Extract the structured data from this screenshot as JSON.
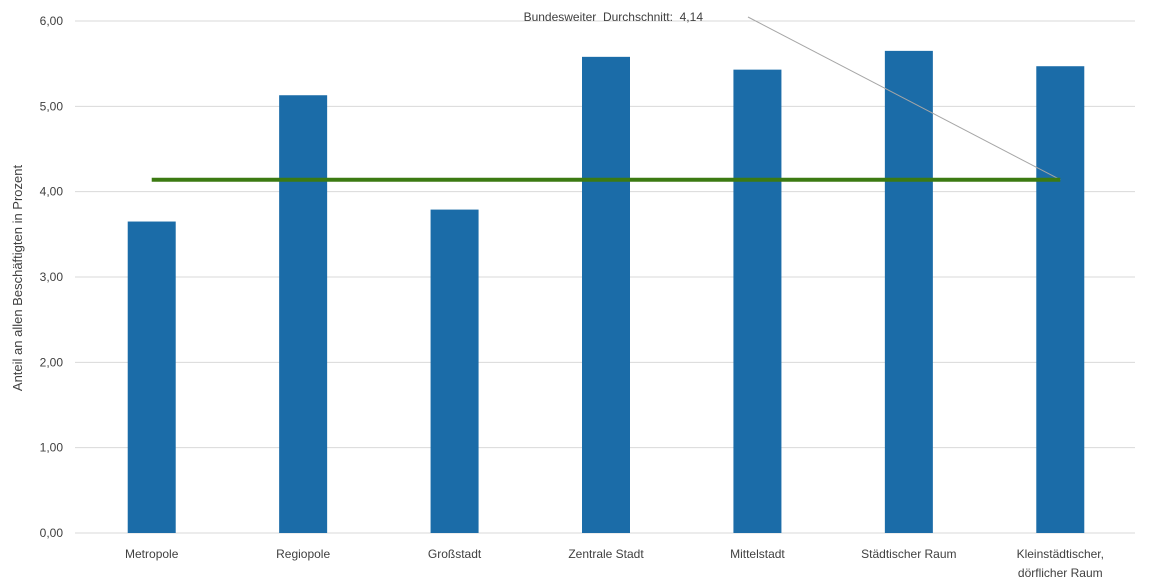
{
  "chart_data": {
    "type": "bar",
    "title": "",
    "xlabel": "",
    "ylabel": "Anteil an allen Beschäftigten in Prozent",
    "ylim": [
      0,
      6
    ],
    "yticks": [
      "0,00",
      "1,00",
      "2,00",
      "3,00",
      "4,00",
      "5,00",
      "6,00"
    ],
    "grid": true,
    "categories": [
      [
        "Metropole"
      ],
      [
        "Regiopole"
      ],
      [
        "Großstadt"
      ],
      [
        "Zentrale Stadt"
      ],
      [
        "Mittelstadt"
      ],
      [
        "Städtischer Raum"
      ],
      [
        "Kleinstädtischer,",
        "dörflicher Raum"
      ]
    ],
    "values": [
      3.65,
      5.13,
      3.79,
      5.58,
      5.43,
      5.65,
      5.47
    ],
    "reference_line": {
      "value": 4.14,
      "label": "Bundesweiter  Durchschnitt:  4,14"
    }
  },
  "colors": {
    "bar": "#1b6ca8",
    "reference_line": "#3c7a12",
    "grid": "#d9d9d9",
    "leader_line": "#a6a6a6",
    "text": "#404040"
  }
}
